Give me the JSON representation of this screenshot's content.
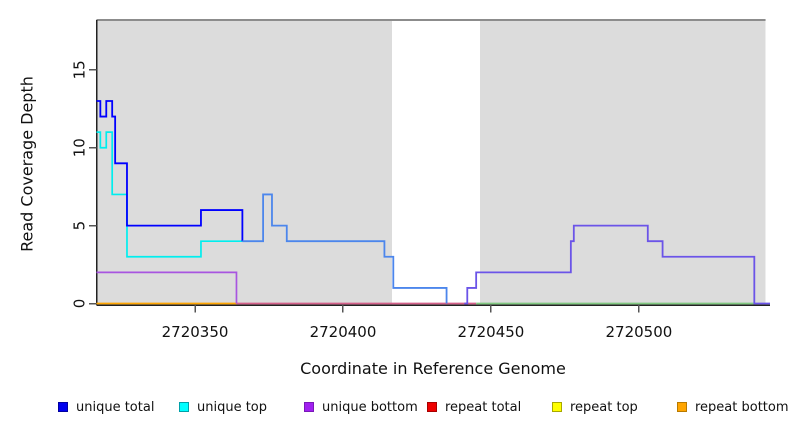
{
  "figure": {
    "xlabel": "Coordinate in Reference Genome",
    "ylabel": "Read Coverage Depth",
    "background": "#ffffff",
    "shaded_region_color": "#dcdcdc",
    "top_boundary_color": "#8c8c8c",
    "axis_color": "#222222",
    "tick_color": "#555555"
  },
  "legend": {
    "items": [
      {
        "label": "unique total",
        "color": "#0000ee",
        "border": "#0000a0"
      },
      {
        "label": "unique top",
        "color": "#00ffff",
        "border": "#00a0a8"
      },
      {
        "label": "unique bottom",
        "color": "#a020f0",
        "border": "#7a18b8"
      },
      {
        "label": "repeat total",
        "color": "#ee0000",
        "border": "#a80000"
      },
      {
        "label": "repeat top",
        "color": "#ffff00",
        "border": "#a8a800"
      },
      {
        "label": "repeat bottom",
        "color": "#ffa500",
        "border": "#b87a00"
      }
    ]
  },
  "chart_data": {
    "type": "line",
    "subtype": "step-coverage",
    "title": "",
    "xlabel": "Coordinate in Reference Genome",
    "ylabel": "Read Coverage Depth",
    "xlim": [
      2720316.7,
      2720544.3
    ],
    "ylim": [
      0,
      18.2
    ],
    "x_ticks": [
      2720350,
      2720400,
      2720450,
      2720500
    ],
    "y_ticks": [
      0,
      5,
      10,
      15
    ],
    "grid": false,
    "legend_position": "bottom",
    "shaded_regions": [
      {
        "from": 2720316.7,
        "to": 2720416.5
      },
      {
        "from": 2720446.3,
        "to": 2720542.8
      }
    ],
    "series": [
      {
        "name": "unique total",
        "color": "#0000ff",
        "steps": [
          [
            2720317,
            13
          ],
          [
            2720318,
            12
          ],
          [
            2720320,
            13
          ],
          [
            2720322,
            12
          ],
          [
            2720323,
            9
          ],
          [
            2720327,
            5
          ],
          [
            2720352,
            6
          ],
          [
            2720366,
            4
          ],
          [
            2720373,
            7
          ],
          [
            2720376,
            5
          ],
          [
            2720381,
            4
          ],
          [
            2720414,
            3
          ],
          [
            2720417,
            1
          ],
          [
            2720435,
            0
          ],
          [
            2720442,
            1
          ],
          [
            2720445,
            2
          ],
          [
            2720477,
            4
          ],
          [
            2720478,
            5
          ],
          [
            2720503,
            4
          ],
          [
            2720508,
            3
          ],
          [
            2720539,
            0
          ]
        ]
      },
      {
        "name": "unique top",
        "color": "#00ffff",
        "steps": [
          [
            2720317,
            11
          ],
          [
            2720318,
            10
          ],
          [
            2720320,
            11
          ],
          [
            2720322,
            7
          ],
          [
            2720327,
            3
          ],
          [
            2720352,
            4
          ],
          [
            2720366,
            4
          ],
          [
            2720373,
            7
          ],
          [
            2720376,
            5
          ],
          [
            2720381,
            4
          ],
          [
            2720414,
            3
          ],
          [
            2720417,
            1
          ],
          [
            2720435,
            0
          ]
        ]
      },
      {
        "name": "unique bottom",
        "color": "#a020f0",
        "steps": [
          [
            2720317,
            2
          ],
          [
            2720364,
            0
          ],
          [
            2720442,
            1
          ],
          [
            2720445,
            2
          ],
          [
            2720477,
            4
          ],
          [
            2720478,
            5
          ],
          [
            2720503,
            4
          ],
          [
            2720508,
            3
          ],
          [
            2720539,
            0
          ]
        ]
      },
      {
        "name": "repeat total",
        "color": "#ee0000",
        "steps": [
          [
            2720317,
            0
          ]
        ]
      },
      {
        "name": "repeat top",
        "color": "#ffff00",
        "steps": [
          [
            2720317,
            0
          ]
        ]
      },
      {
        "name": "repeat bottom",
        "color": "#ffa500",
        "steps": [
          [
            2720317,
            0
          ]
        ]
      }
    ],
    "draw_layers": [
      {
        "series": "repeat bottom",
        "from": 2720316.7,
        "to": 2720364,
        "color": "#ffa500",
        "width": 1.7
      },
      {
        "series": "repeat total",
        "from": 2720364,
        "to": 2720445,
        "color": "#d4608a",
        "width": 1.7
      },
      {
        "series": "repeat top",
        "from": 2720445,
        "to": 2720539,
        "color": "#80c880",
        "width": 1.7
      },
      {
        "series": "unique bottom",
        "from": 2720316.7,
        "to": 2720364,
        "color": "#a855e0",
        "width": 1.7
      },
      {
        "series": "unique top",
        "from": 2720316.7,
        "to": 2720366,
        "color": "#00eeee",
        "width": 1.7
      },
      {
        "series": "unique total",
        "from": 2720316.7,
        "to": 2720366,
        "color": "#0000ff",
        "width": 1.8
      },
      {
        "series": "unique total",
        "from": 2720366,
        "to": 2720435,
        "color": "#4c86ec",
        "width": 1.8
      },
      {
        "series": "unique total",
        "from": 2720441,
        "to": 2720544.3,
        "color": "#6b54e8",
        "width": 1.8
      }
    ]
  }
}
